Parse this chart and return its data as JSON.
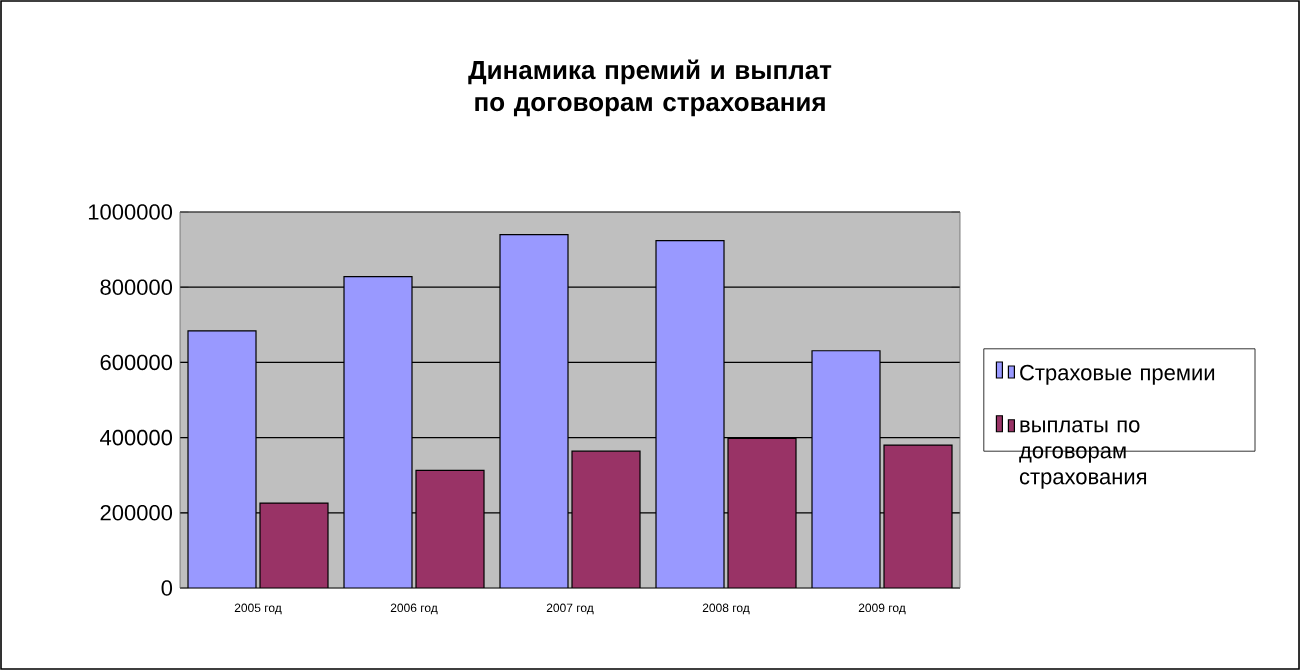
{
  "chart_data": {
    "type": "bar",
    "title": "Динамика премий и выплат по договорам страхования",
    "categories": [
      "2005 год",
      "2006 год",
      "2007 год",
      "2008 год",
      "2009 год"
    ],
    "series": [
      {
        "name": "Страховые премии",
        "color": "#9999ff",
        "values": [
          684000,
          828000,
          940000,
          924000,
          631000
        ]
      },
      {
        "name": "выплаты по договорам страхования",
        "color": "#993366",
        "values": [
          226000,
          313000,
          364000,
          398000,
          380000
        ]
      }
    ],
    "ylim": [
      0,
      1000000
    ],
    "yticks": [
      0,
      200000,
      400000,
      600000,
      800000,
      1000000
    ],
    "grid": "y",
    "legend": "right"
  }
}
